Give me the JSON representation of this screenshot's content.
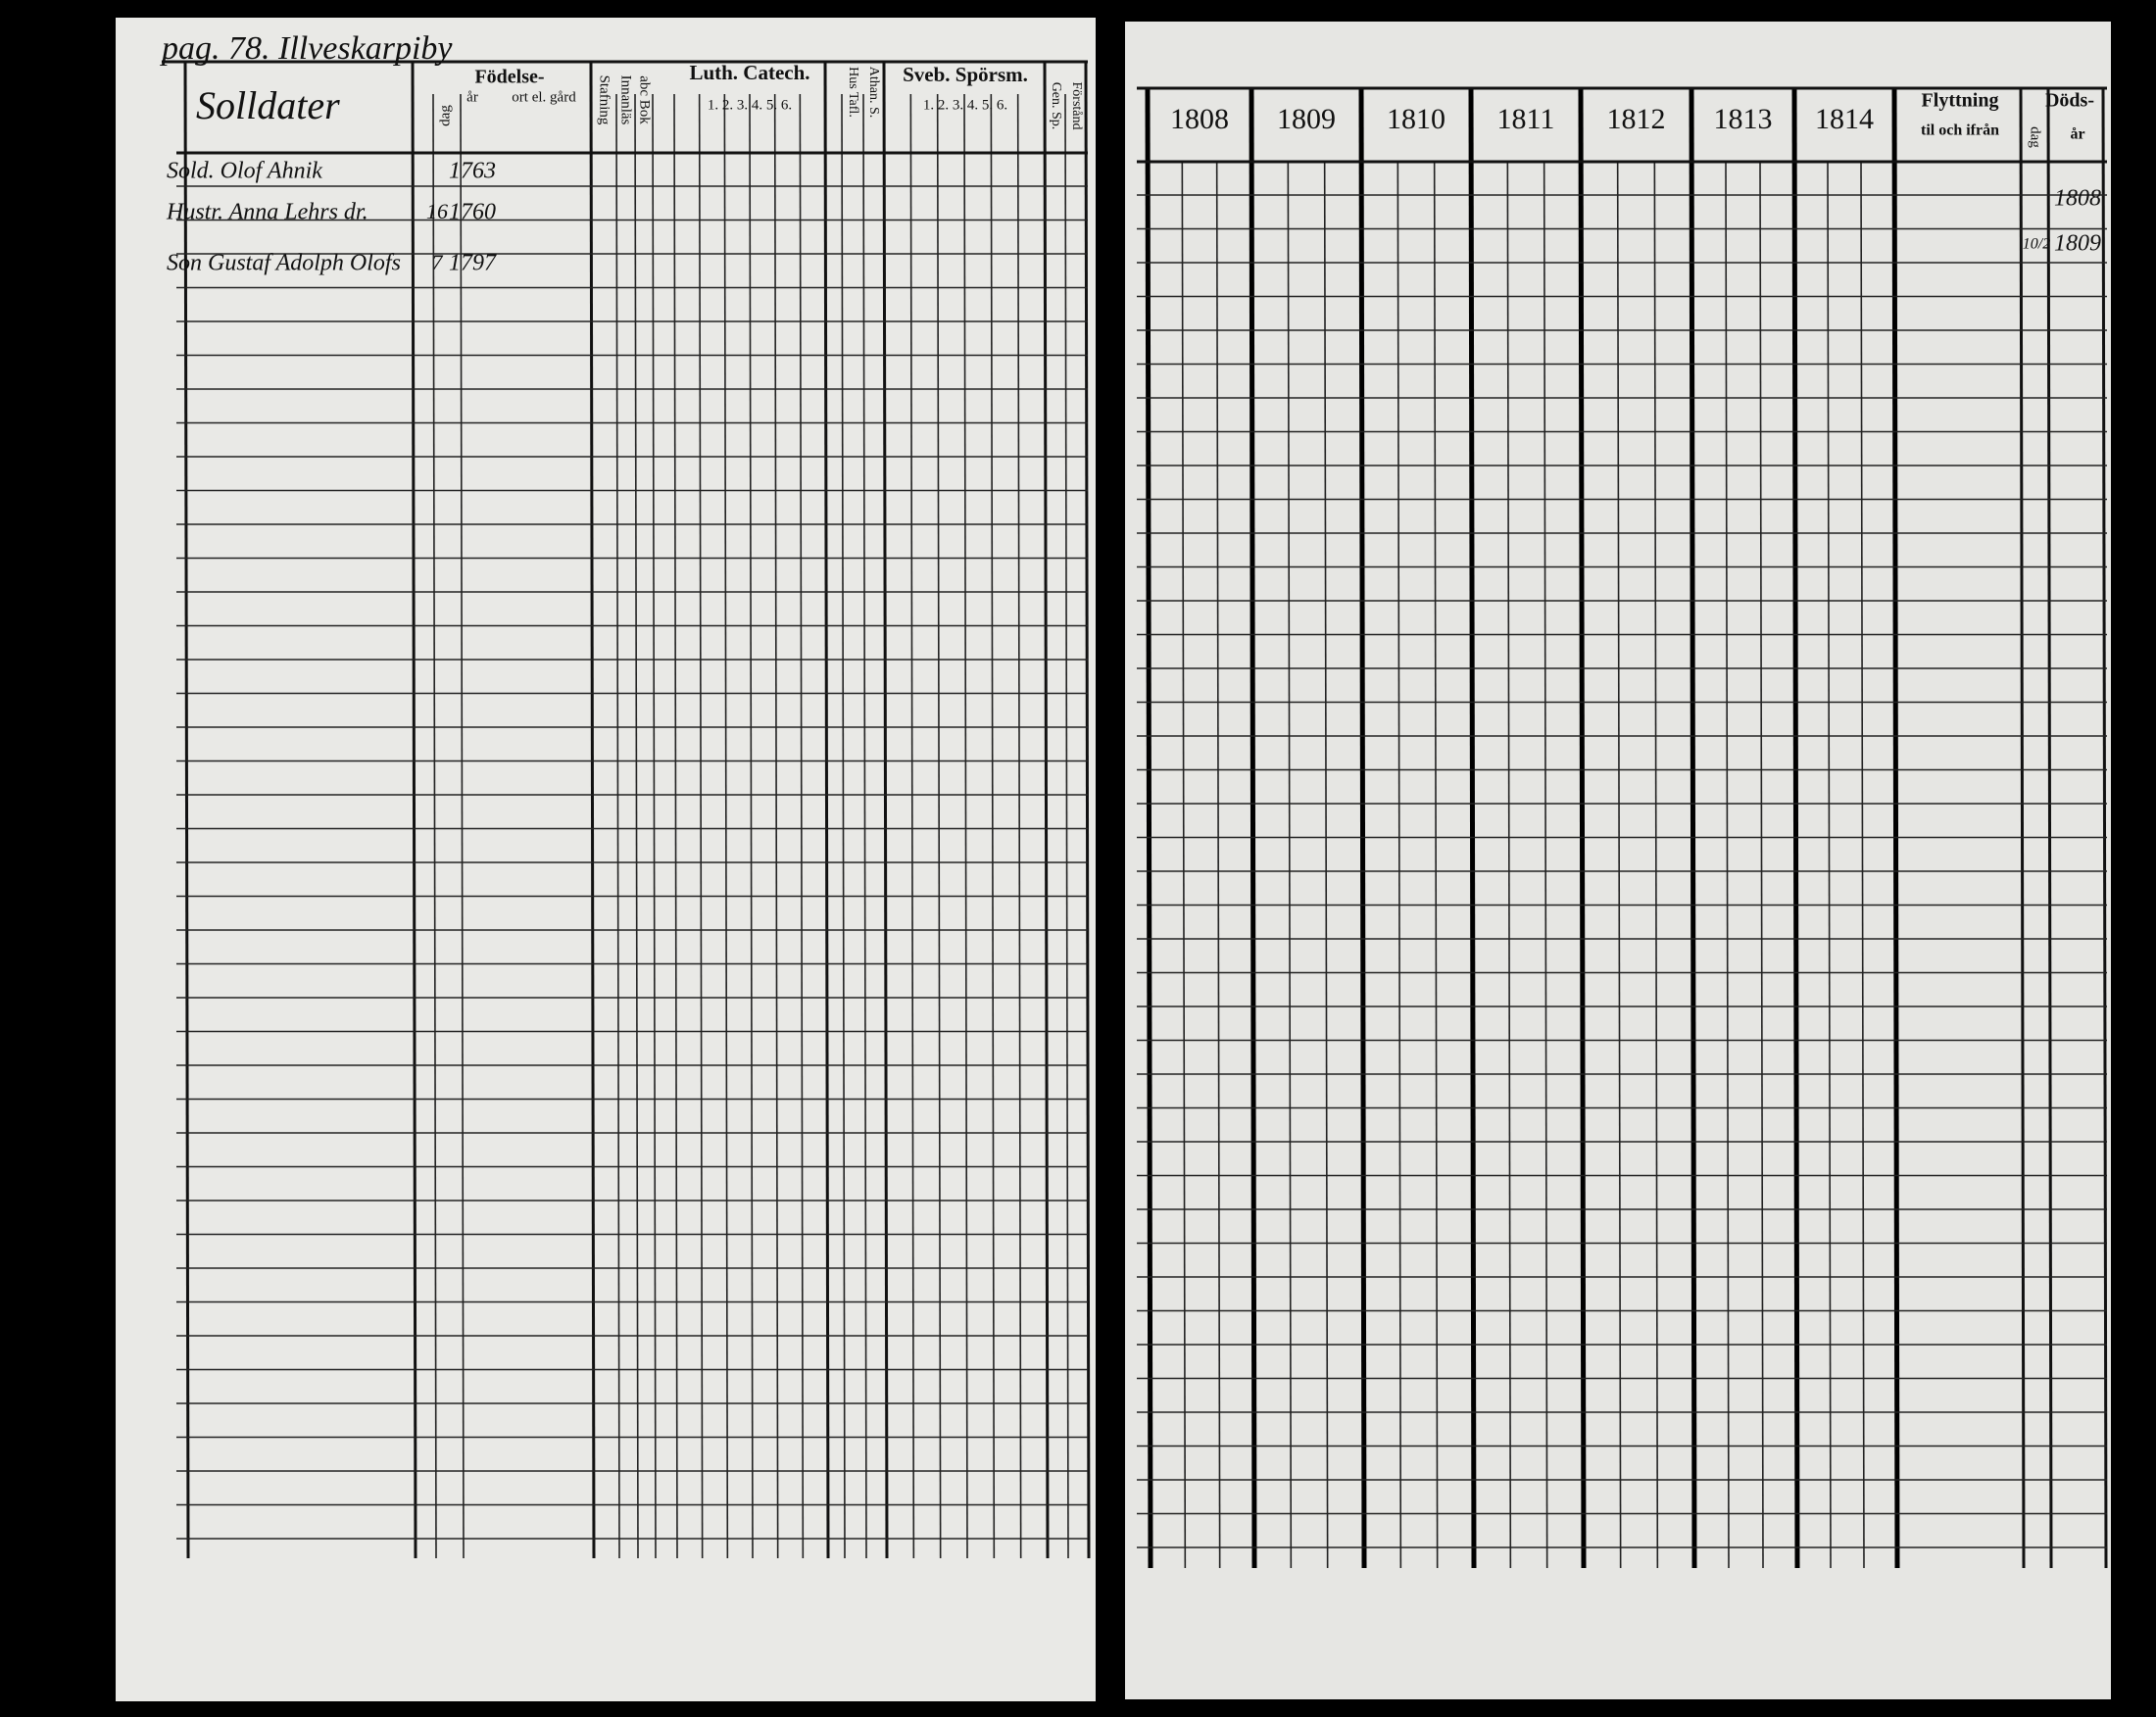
{
  "left_page": {
    "header": "pag. 78. Illveskarpiby",
    "section": "Solldater",
    "columns": {
      "birth": "Födelse-",
      "day": "dag",
      "year": "år",
      "place": "ort el. gård",
      "spelling": "Stafning",
      "reading": "Innanläs",
      "abc": "abc Bok",
      "luth": "Luth. Catech.",
      "luth_parts": "1. 2. 3. 4. 5. 6.",
      "hus": "Hus Tafl.",
      "athan": "Athan. S.",
      "sveb": "Sveb. Spörsm.",
      "sveb_parts": "1. 2. 3. 4. 5. 6.",
      "gen": "Gen. Sp.",
      "forstand": "Förstånd"
    },
    "rows": [
      {
        "name": "Sold. Olof Ahnik",
        "day": "",
        "year": "1763"
      },
      {
        "name": "Hustr. Anna Lehrs dr.",
        "day": "16",
        "year": "1760"
      },
      {
        "name": "Son Gustaf Adolph Olofs",
        "day": "7",
        "year": "1797"
      }
    ]
  },
  "right_page": {
    "years": [
      "1808",
      "1809",
      "1810",
      "1811",
      "1812",
      "1813",
      "1814"
    ],
    "moving": "Flyttning",
    "moving_sub": "til och ifrån",
    "death": "Döds-",
    "death_day": "dag",
    "death_year": "år",
    "deaths": [
      {
        "day": "",
        "year": "1808"
      },
      {
        "day": "10/2",
        "year": "1809"
      }
    ]
  }
}
